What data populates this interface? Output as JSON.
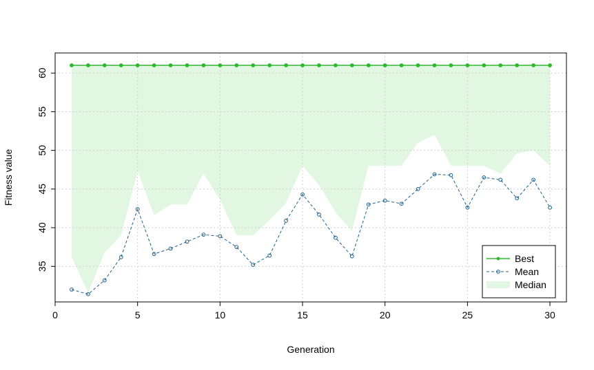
{
  "chart_data": {
    "type": "line",
    "title": "",
    "xlabel": "Generation",
    "ylabel": "Fitness value",
    "xlim": [
      0,
      31
    ],
    "ylim": [
      30.4,
      62.6
    ],
    "x_ticks": [
      0,
      5,
      10,
      15,
      20,
      25,
      30
    ],
    "y_ticks": [
      35,
      40,
      45,
      50,
      55,
      60
    ],
    "grid": true,
    "legend_position": "bottom-right",
    "x": [
      1,
      2,
      3,
      4,
      5,
      6,
      7,
      8,
      9,
      10,
      11,
      12,
      13,
      14,
      15,
      16,
      17,
      18,
      19,
      20,
      21,
      22,
      23,
      24,
      25,
      26,
      27,
      28,
      29,
      30
    ],
    "series": [
      {
        "name": "Best",
        "style": "solid line with filled points",
        "color": "#2fb82f",
        "values": [
          61,
          61,
          61,
          61,
          61,
          61,
          61,
          61,
          61,
          61,
          61,
          61,
          61,
          61,
          61,
          61,
          61,
          61,
          61,
          61,
          61,
          61,
          61,
          61,
          61,
          61,
          61,
          61,
          61,
          61
        ]
      },
      {
        "name": "Mean",
        "style": "dashed line with open circles",
        "color": "#1f5f8b",
        "values": [
          32,
          31.4,
          33.2,
          36.2,
          42.4,
          36.6,
          37.3,
          38.2,
          39.1,
          38.9,
          37.5,
          35.2,
          36.4,
          40.9,
          44.3,
          41.7,
          38.7,
          36.3,
          43,
          43.5,
          43.1,
          45,
          46.9,
          46.8,
          42.6,
          46.5,
          46.2,
          43.8,
          46.2,
          42.6
        ]
      },
      {
        "name": "Median",
        "style": "filled band",
        "color": "#e1f7e1",
        "values": [
          36.2,
          31.6,
          36.8,
          39,
          47.3,
          41.6,
          43,
          43,
          47,
          43.6,
          39,
          39,
          41,
          43.2,
          48,
          45.5,
          42,
          39.6,
          48,
          48,
          48,
          51,
          52,
          48,
          48,
          48,
          47,
          49.6,
          50,
          48
        ]
      }
    ]
  }
}
